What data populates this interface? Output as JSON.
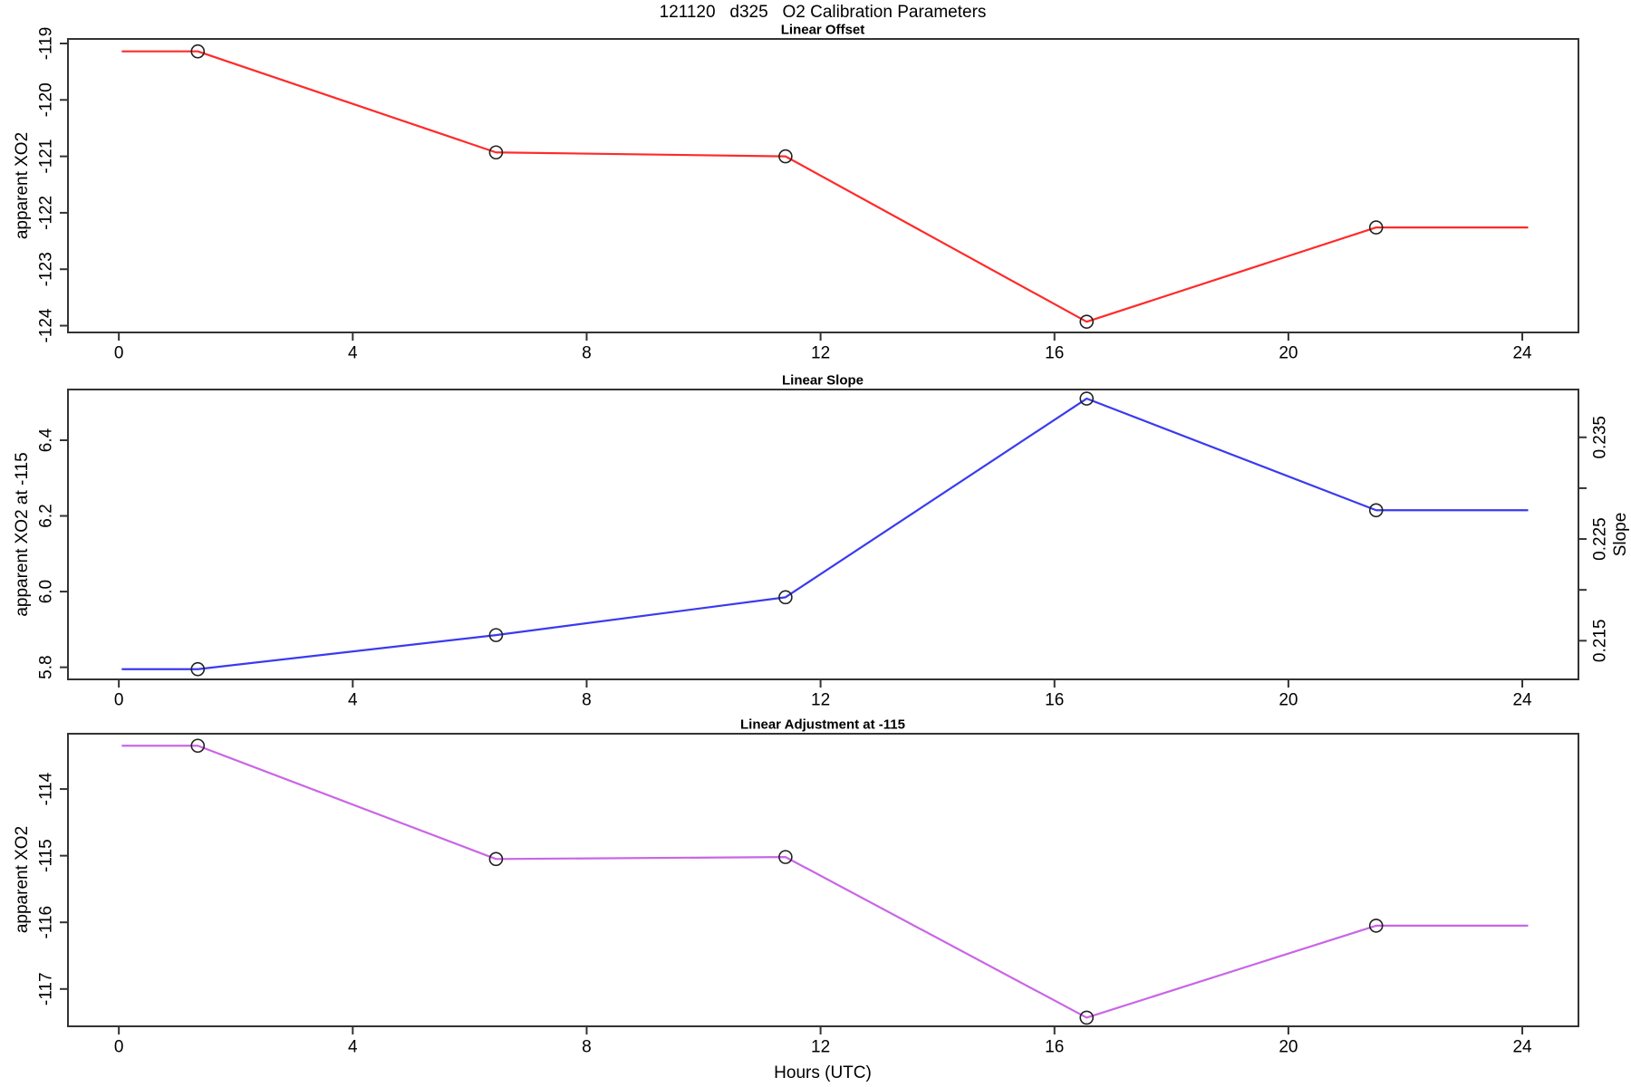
{
  "page_title": "121120   d325   O2 Calibration Parameters",
  "x_axis": {
    "label": "Hours (UTC)",
    "ticks": [
      0,
      4,
      8,
      12,
      16,
      20,
      24
    ],
    "xlim": [
      -0.87,
      24.96
    ]
  },
  "chart_data": [
    {
      "type": "line",
      "title": "Linear Offset",
      "ylabel": "apparent XO2",
      "color": "#ff2a2a",
      "x": [
        1.35,
        6.45,
        11.4,
        16.55,
        21.5
      ],
      "values": [
        -119.14,
        -120.93,
        -121.0,
        -123.93,
        -122.26
      ],
      "line_x": [
        0.05,
        1.35,
        6.45,
        11.4,
        16.55,
        21.5,
        24.1
      ],
      "line_values": [
        -119.14,
        -119.14,
        -120.93,
        -121.0,
        -123.93,
        -122.26,
        -122.26
      ],
      "yticks": [
        {
          "v": -119,
          "label": "-119"
        },
        {
          "v": -120,
          "label": "-120"
        },
        {
          "v": -121,
          "label": "-121"
        },
        {
          "v": -122,
          "label": "-122"
        },
        {
          "v": -123,
          "label": "-123"
        },
        {
          "v": -124,
          "label": "-124"
        }
      ],
      "ylim": [
        -124.12,
        -118.92
      ],
      "grid": false,
      "marker": "open-circle"
    },
    {
      "type": "line",
      "title": "Linear Slope",
      "ylabel": "apparent XO2 at -115",
      "color": "#3a3af0",
      "x": [
        1.35,
        6.45,
        11.4,
        16.55,
        21.5
      ],
      "values": [
        5.795,
        5.885,
        5.985,
        6.51,
        6.215
      ],
      "slope_values": [
        0.2121,
        0.2155,
        0.2193,
        0.2388,
        0.2279
      ],
      "line_x": [
        0.05,
        1.35,
        6.45,
        11.4,
        16.55,
        21.5,
        24.1
      ],
      "line_values": [
        5.795,
        5.795,
        5.885,
        5.985,
        6.51,
        6.215,
        6.215
      ],
      "yticks": [
        {
          "v": 5.8,
          "label": "5.8"
        },
        {
          "v": 6.0,
          "label": "6.0"
        },
        {
          "v": 6.2,
          "label": "6.2"
        },
        {
          "v": 6.4,
          "label": "6.4"
        }
      ],
      "ylim": [
        5.768,
        6.534
      ],
      "right_axis": {
        "label": "Slope",
        "ylim": [
          0.2112,
          0.2397
        ],
        "ticks": [
          {
            "v": 0.215,
            "label": "0.215"
          },
          {
            "v": 0.22,
            "label": ""
          },
          {
            "v": 0.225,
            "label": "0.225"
          },
          {
            "v": 0.23,
            "label": ""
          },
          {
            "v": 0.235,
            "label": "0.235"
          }
        ]
      },
      "grid": false,
      "marker": "open-circle"
    },
    {
      "type": "line",
      "title": "Linear Adjustment at -115",
      "ylabel": "apparent XO2",
      "color": "#c966e6",
      "x": [
        1.35,
        6.45,
        11.4,
        16.55,
        21.5
      ],
      "values": [
        -113.35,
        -115.05,
        -115.02,
        -117.43,
        -116.05
      ],
      "line_x": [
        0.05,
        1.35,
        6.45,
        11.4,
        16.55,
        21.5,
        24.1
      ],
      "line_values": [
        -113.35,
        -113.35,
        -115.05,
        -115.02,
        -117.43,
        -116.05,
        -116.05
      ],
      "yticks": [
        {
          "v": -114,
          "label": "-114"
        },
        {
          "v": -115,
          "label": "-115"
        },
        {
          "v": -116,
          "label": "-116"
        },
        {
          "v": -117,
          "label": "-117"
        }
      ],
      "ylim": [
        -117.56,
        -113.17
      ],
      "grid": false,
      "marker": "open-circle"
    }
  ]
}
